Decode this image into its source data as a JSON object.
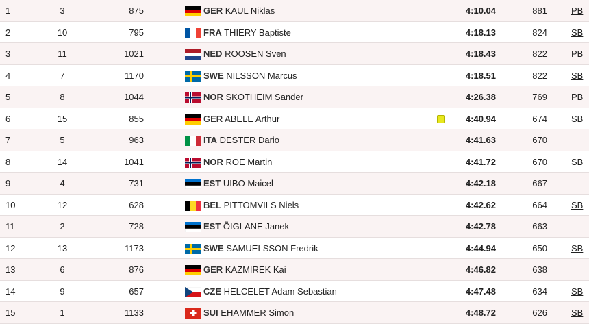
{
  "table": {
    "rows": [
      {
        "rank": 1,
        "order": 3,
        "bib": 875,
        "country": "GER",
        "name": "KAUL Niklas",
        "time": "4:10.04",
        "points": 881,
        "note": "PB"
      },
      {
        "rank": 2,
        "order": 10,
        "bib": 795,
        "country": "FRA",
        "name": "THIERY Baptiste",
        "time": "4:18.13",
        "points": 824,
        "note": "SB"
      },
      {
        "rank": 3,
        "order": 11,
        "bib": 1021,
        "country": "NED",
        "name": "ROOSEN Sven",
        "time": "4:18.43",
        "points": 822,
        "note": "PB"
      },
      {
        "rank": 4,
        "order": 7,
        "bib": 1170,
        "country": "SWE",
        "name": "NILSSON Marcus",
        "time": "4:18.51",
        "points": 822,
        "note": "SB"
      },
      {
        "rank": 5,
        "order": 8,
        "bib": 1044,
        "country": "NOR",
        "name": "SKOTHEIM Sander",
        "time": "4:26.38",
        "points": 769,
        "note": "PB"
      },
      {
        "rank": 6,
        "order": 15,
        "bib": 855,
        "country": "GER",
        "name": "ABELE Arthur",
        "yellow_card": true,
        "time": "4:40.94",
        "points": 674,
        "note": "SB"
      },
      {
        "rank": 7,
        "order": 5,
        "bib": 963,
        "country": "ITA",
        "name": "DESTER Dario",
        "time": "4:41.63",
        "points": 670
      },
      {
        "rank": 8,
        "order": 14,
        "bib": 1041,
        "country": "NOR",
        "name": "ROE Martin",
        "time": "4:41.72",
        "points": 670,
        "note": "SB"
      },
      {
        "rank": 9,
        "order": 4,
        "bib": 731,
        "country": "EST",
        "name": "UIBO Maicel",
        "time": "4:42.18",
        "points": 667
      },
      {
        "rank": 10,
        "order": 12,
        "bib": 628,
        "country": "BEL",
        "name": "PITTOMVILS Niels",
        "time": "4:42.62",
        "points": 664,
        "note": "SB"
      },
      {
        "rank": 11,
        "order": 2,
        "bib": 728,
        "country": "EST",
        "name": "ÕIGLANE Janek",
        "time": "4:42.78",
        "points": 663
      },
      {
        "rank": 12,
        "order": 13,
        "bib": 1173,
        "country": "SWE",
        "name": "SAMUELSSON Fredrik",
        "time": "4:44.94",
        "points": 650,
        "note": "SB"
      },
      {
        "rank": 13,
        "order": 6,
        "bib": 876,
        "country": "GER",
        "name": "KAZMIREK Kai",
        "time": "4:46.82",
        "points": 638
      },
      {
        "rank": 14,
        "order": 9,
        "bib": 657,
        "country": "CZE",
        "name": "HELCELET Adam Sebastian",
        "time": "4:47.48",
        "points": 634,
        "note": "SB"
      },
      {
        "rank": 15,
        "order": 1,
        "bib": 1133,
        "country": "SUI",
        "name": "EHAMMER Simon",
        "time": "4:48.72",
        "points": 626,
        "note": "SB"
      }
    ]
  }
}
